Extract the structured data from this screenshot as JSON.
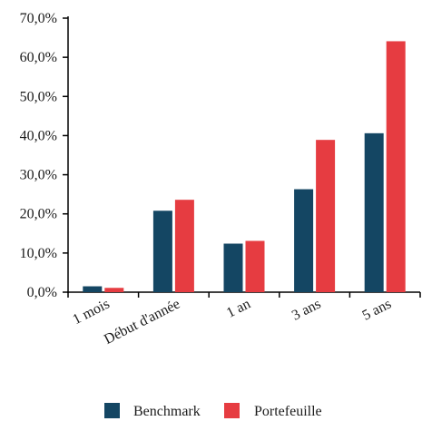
{
  "chart_data": {
    "type": "bar",
    "categories": [
      "1 mois",
      "Début d'année",
      "1 an",
      "3 ans",
      "5 ans"
    ],
    "series": [
      {
        "name": "Benchmark",
        "color": "#144663",
        "values": [
          1.5,
          20.8,
          12.4,
          26.3,
          40.6
        ]
      },
      {
        "name": "Portefeuille",
        "color": "#e63c41",
        "values": [
          1.1,
          23.6,
          13.1,
          38.9,
          64.1
        ]
      }
    ],
    "y_ticks": [
      "0,0%",
      "10,0%",
      "20,0%",
      "30,0%",
      "40,0%",
      "50,0%",
      "60,0%",
      "70,0%"
    ],
    "ylim": [
      0,
      70
    ],
    "title": "",
    "xlabel": "",
    "ylabel": "",
    "grid": false,
    "legend_position": "bottom-center",
    "category_label_rotation": "rotated"
  }
}
